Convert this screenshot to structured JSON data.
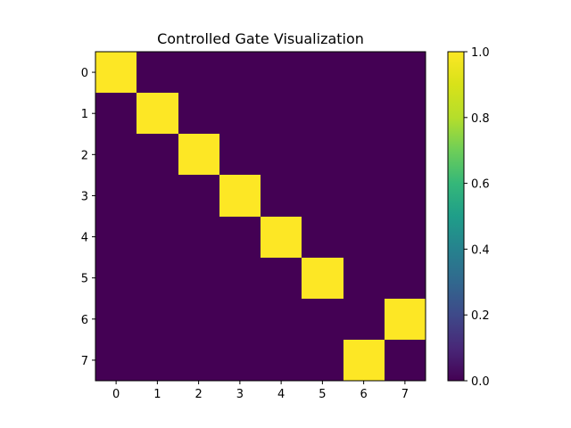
{
  "chart_data": {
    "type": "heatmap",
    "title": "Controlled Gate Visualization",
    "xlabel": "",
    "ylabel": "",
    "x_ticks": [
      "0",
      "1",
      "2",
      "3",
      "4",
      "5",
      "6",
      "7"
    ],
    "y_ticks": [
      "0",
      "1",
      "2",
      "3",
      "4",
      "5",
      "6",
      "7"
    ],
    "values": [
      [
        1,
        0,
        0,
        0,
        0,
        0,
        0,
        0
      ],
      [
        0,
        1,
        0,
        0,
        0,
        0,
        0,
        0
      ],
      [
        0,
        0,
        1,
        0,
        0,
        0,
        0,
        0
      ],
      [
        0,
        0,
        0,
        1,
        0,
        0,
        0,
        0
      ],
      [
        0,
        0,
        0,
        0,
        1,
        0,
        0,
        0
      ],
      [
        0,
        0,
        0,
        0,
        0,
        1,
        0,
        0
      ],
      [
        0,
        0,
        0,
        0,
        0,
        0,
        0,
        1
      ],
      [
        0,
        0,
        0,
        0,
        0,
        0,
        1,
        0
      ]
    ],
    "colormap": "viridis",
    "color_low": "#440154",
    "color_high": "#fde725",
    "vmin": 0.0,
    "vmax": 1.0,
    "colorbar_ticks": [
      "0.0",
      "0.2",
      "0.4",
      "0.6",
      "0.8",
      "1.0"
    ],
    "grid": false,
    "legend": "colorbar-right"
  }
}
